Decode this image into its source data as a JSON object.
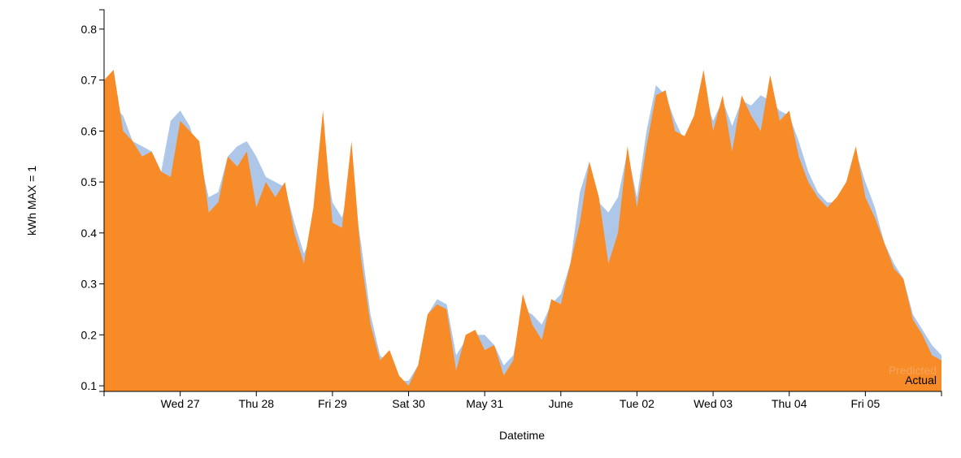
{
  "chart_data": {
    "type": "area",
    "xlabel": "Datetime",
    "ylabel": "kWh MAX = 1",
    "categories": [
      null,
      null,
      null,
      null,
      null,
      null,
      null,
      null,
      "Wed 27",
      null,
      null,
      null,
      null,
      null,
      null,
      null,
      "Thu 28",
      null,
      null,
      null,
      null,
      null,
      null,
      null,
      "Fri 29",
      null,
      null,
      null,
      null,
      null,
      null,
      null,
      "Sat 30",
      null,
      null,
      null,
      null,
      null,
      null,
      null,
      "May 31",
      null,
      null,
      null,
      null,
      null,
      null,
      null,
      "June",
      null,
      null,
      null,
      null,
      null,
      null,
      null,
      "Tue 02",
      null,
      null,
      null,
      null,
      null,
      null,
      null,
      "Wed 03",
      null,
      null,
      null,
      null,
      null,
      null,
      null,
      "Thu 04",
      null,
      null,
      null,
      null,
      null,
      null,
      null,
      "Fri 05",
      null,
      null,
      null,
      null,
      null,
      null,
      null,
      null
    ],
    "series": [
      {
        "name": "Predicted",
        "color": "#aec7e8",
        "values": [
          0.68,
          0.65,
          0.63,
          0.58,
          0.57,
          0.56,
          0.52,
          0.62,
          0.64,
          0.61,
          0.55,
          0.47,
          0.48,
          0.55,
          0.57,
          0.58,
          0.55,
          0.51,
          0.5,
          0.49,
          0.42,
          0.36,
          0.4,
          0.58,
          0.46,
          0.43,
          0.5,
          0.38,
          0.24,
          0.16,
          0.14,
          0.11,
          0.11,
          0.14,
          0.24,
          0.27,
          0.26,
          0.16,
          0.19,
          0.2,
          0.2,
          0.18,
          0.14,
          0.16,
          0.25,
          0.24,
          0.22,
          0.26,
          0.28,
          0.34,
          0.48,
          0.54,
          0.46,
          0.44,
          0.47,
          0.56,
          0.47,
          0.6,
          0.69,
          0.67,
          0.62,
          0.58,
          0.63,
          0.67,
          0.62,
          0.66,
          0.61,
          0.66,
          0.65,
          0.67,
          0.66,
          0.64,
          0.63,
          0.58,
          0.52,
          0.48,
          0.46,
          0.46,
          0.5,
          0.56,
          0.5,
          0.45,
          0.38,
          0.34,
          0.31,
          0.24,
          0.21,
          0.18,
          0.16
        ]
      },
      {
        "name": "Actual",
        "color": "#f68b28",
        "values": [
          0.7,
          0.72,
          0.6,
          0.58,
          0.55,
          0.56,
          0.52,
          0.51,
          0.62,
          0.6,
          0.58,
          0.44,
          0.46,
          0.55,
          0.53,
          0.56,
          0.45,
          0.5,
          0.47,
          0.5,
          0.4,
          0.34,
          0.45,
          0.64,
          0.42,
          0.41,
          0.58,
          0.35,
          0.22,
          0.15,
          0.17,
          0.12,
          0.1,
          0.14,
          0.24,
          0.26,
          0.25,
          0.13,
          0.2,
          0.21,
          0.17,
          0.18,
          0.12,
          0.15,
          0.28,
          0.22,
          0.19,
          0.27,
          0.26,
          0.34,
          0.42,
          0.54,
          0.47,
          0.34,
          0.4,
          0.57,
          0.45,
          0.57,
          0.67,
          0.68,
          0.6,
          0.59,
          0.63,
          0.72,
          0.6,
          0.67,
          0.56,
          0.67,
          0.63,
          0.6,
          0.71,
          0.62,
          0.64,
          0.55,
          0.5,
          0.47,
          0.45,
          0.47,
          0.5,
          0.57,
          0.47,
          0.43,
          0.38,
          0.33,
          0.31,
          0.23,
          0.2,
          0.16,
          0.15
        ]
      }
    ],
    "ylim": [
      0.089,
      0.838
    ],
    "yticks": [
      0.1,
      0.2,
      0.3,
      0.4,
      0.5,
      0.6,
      0.7,
      0.8
    ],
    "legend": "bottom-right"
  }
}
